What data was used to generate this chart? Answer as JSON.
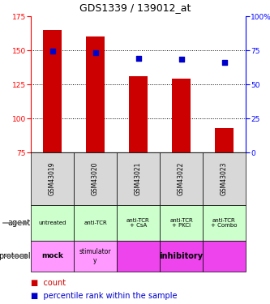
{
  "title": "GDS1339 / 139012_at",
  "samples": [
    "GSM43019",
    "GSM43020",
    "GSM43021",
    "GSM43022",
    "GSM43023"
  ],
  "bar_values": [
    165,
    160,
    131,
    129,
    93
  ],
  "bar_bottom": 75,
  "bar_color": "#cc0000",
  "dot_values": [
    74.5,
    73,
    69,
    68.5,
    66
  ],
  "dot_color": "#0000cc",
  "ylim_left": [
    75,
    175
  ],
  "ylim_right": [
    0,
    100
  ],
  "yticks_left": [
    75,
    100,
    125,
    150,
    175
  ],
  "yticks_right": [
    0,
    25,
    50,
    75,
    100
  ],
  "agent_labels": [
    "untreated",
    "anti-TCR",
    "anti-TCR\n+ CsA",
    "anti-TCR\n+ PKCi",
    "anti-TCR\n+ Combo"
  ],
  "agent_color": "#ccffcc",
  "protocol_mock_color": "#ff99ff",
  "protocol_stim_color": "#ff99ff",
  "protocol_inhib_color": "#ee44ee",
  "legend_count_color": "#cc0000",
  "legend_dot_color": "#0000cc",
  "gsm_bg_color": "#d8d8d8",
  "grid_vals": [
    100,
    125,
    150
  ]
}
